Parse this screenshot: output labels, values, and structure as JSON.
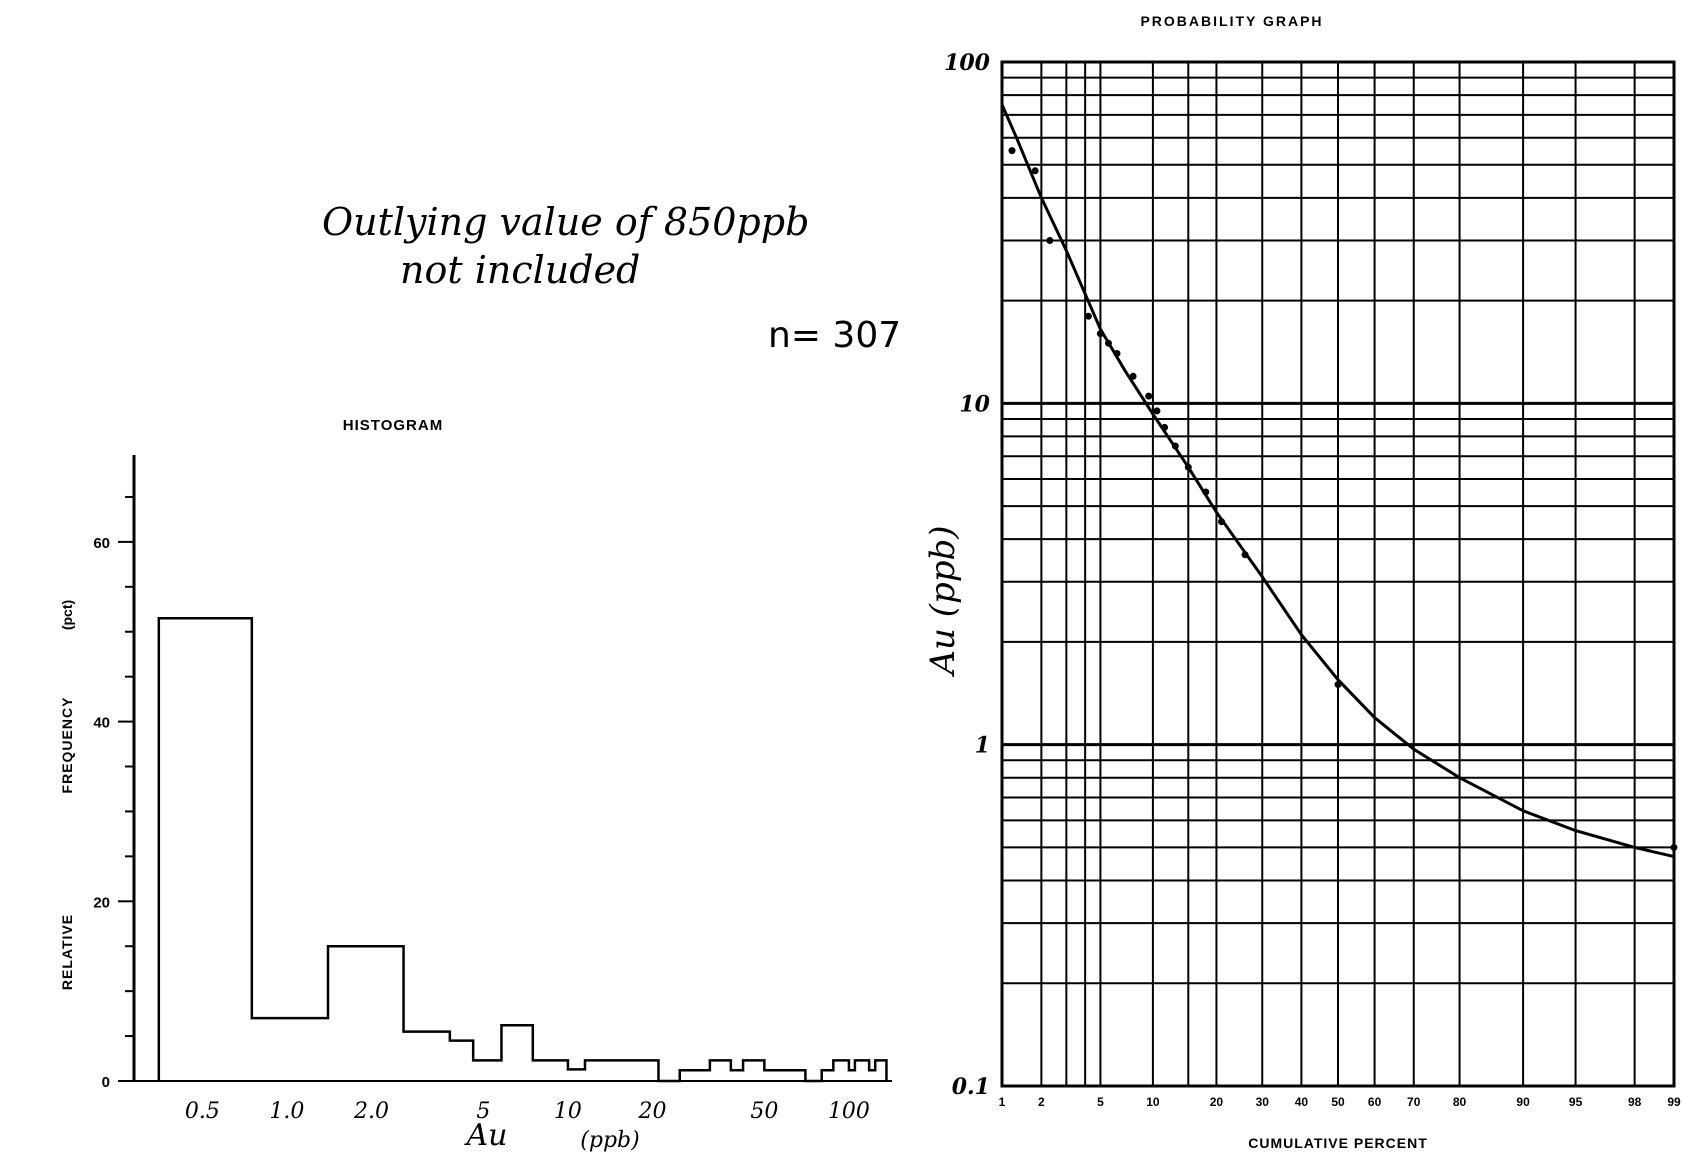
{
  "annotations": {
    "note_line1": "Outlying value of 850ppb",
    "note_line2": "not included",
    "sample_count": "n= 307"
  },
  "chart_data": [
    {
      "type": "bar",
      "title": "HISTOGRAM",
      "ylabel_parts": [
        "RELATIVE",
        "FREQUENCY",
        "(pct)"
      ],
      "xlabel": "Au",
      "xlabel_unit": "(ppb)",
      "x_scale": "log",
      "xlim": [
        0.3,
        140
      ],
      "ylim": [
        0,
        68
      ],
      "yticks": [
        0,
        20,
        40,
        60
      ],
      "xticks": [
        {
          "value": 0.5,
          "label": "0.5"
        },
        {
          "value": 1.0,
          "label": "1.0"
        },
        {
          "value": 2.0,
          "label": "2.0"
        },
        {
          "value": 5,
          "label": "5"
        },
        {
          "value": 10,
          "label": "10"
        },
        {
          "value": 20,
          "label": "20"
        },
        {
          "value": 50,
          "label": "50"
        },
        {
          "value": 100,
          "label": "100"
        }
      ],
      "bins": [
        {
          "from": 0.35,
          "to": 0.75,
          "value": 51.5
        },
        {
          "from": 0.75,
          "to": 1.4,
          "value": 7
        },
        {
          "from": 1.4,
          "to": 2.6,
          "value": 15
        },
        {
          "from": 2.6,
          "to": 3.8,
          "value": 5.5
        },
        {
          "from": 3.8,
          "to": 4.6,
          "value": 4.5
        },
        {
          "from": 4.6,
          "to": 5.8,
          "value": 2.3
        },
        {
          "from": 5.8,
          "to": 7.5,
          "value": 6.2
        },
        {
          "from": 7.5,
          "to": 10,
          "value": 2.3
        },
        {
          "from": 10,
          "to": 11.5,
          "value": 1.3
        },
        {
          "from": 11.5,
          "to": 21,
          "value": 2.3
        },
        {
          "from": 21,
          "to": 25,
          "value": 0
        },
        {
          "from": 25,
          "to": 32,
          "value": 1.2
        },
        {
          "from": 32,
          "to": 38,
          "value": 2.3
        },
        {
          "from": 38,
          "to": 42,
          "value": 1.2
        },
        {
          "from": 42,
          "to": 50,
          "value": 2.3
        },
        {
          "from": 50,
          "to": 70,
          "value": 1.2
        },
        {
          "from": 70,
          "to": 80,
          "value": 0
        },
        {
          "from": 80,
          "to": 88,
          "value": 1.2
        },
        {
          "from": 88,
          "to": 100,
          "value": 2.3
        },
        {
          "from": 100,
          "to": 105,
          "value": 1.2
        },
        {
          "from": 105,
          "to": 118,
          "value": 2.3
        },
        {
          "from": 118,
          "to": 124,
          "value": 1.2
        },
        {
          "from": 124,
          "to": 136,
          "value": 2.3
        }
      ]
    },
    {
      "type": "line",
      "title": "PROBABILITY GRAPH",
      "xlabel": "CUMULATIVE PERCENT",
      "ylabel": "Au (ppb)",
      "x_scale": "normal-probability",
      "y_scale": "log",
      "xlim": [
        1,
        99
      ],
      "ylim": [
        0.1,
        100
      ],
      "grid": true,
      "xticks": [
        1,
        2,
        5,
        10,
        20,
        30,
        40,
        50,
        60,
        70,
        80,
        90,
        95,
        98,
        99
      ],
      "yticks": [
        {
          "value": 0.1,
          "label": "0.1"
        },
        {
          "value": 1,
          "label": "1"
        },
        {
          "value": 10,
          "label": "10"
        },
        {
          "value": 100,
          "label": "100"
        }
      ],
      "points": [
        {
          "x": 1.2,
          "y": 55
        },
        {
          "x": 1.8,
          "y": 48
        },
        {
          "x": 2.3,
          "y": 30
        },
        {
          "x": 4.2,
          "y": 18
        },
        {
          "x": 5,
          "y": 16
        },
        {
          "x": 5.6,
          "y": 15
        },
        {
          "x": 6.3,
          "y": 14
        },
        {
          "x": 7.8,
          "y": 12
        },
        {
          "x": 9.5,
          "y": 10.5
        },
        {
          "x": 10.5,
          "y": 9.5
        },
        {
          "x": 11.5,
          "y": 8.5
        },
        {
          "x": 13,
          "y": 7.5
        },
        {
          "x": 15,
          "y": 6.5
        },
        {
          "x": 18,
          "y": 5.5
        },
        {
          "x": 21,
          "y": 4.5
        },
        {
          "x": 26,
          "y": 3.6
        },
        {
          "x": 50,
          "y": 1.5
        },
        {
          "x": 99,
          "y": 0.5
        }
      ],
      "curve": [
        {
          "x": 1,
          "y": 75
        },
        {
          "x": 1.3,
          "y": 60
        },
        {
          "x": 2,
          "y": 40
        },
        {
          "x": 3,
          "y": 28
        },
        {
          "x": 5,
          "y": 16.5
        },
        {
          "x": 7,
          "y": 12.5
        },
        {
          "x": 10,
          "y": 9.3
        },
        {
          "x": 15,
          "y": 6.5
        },
        {
          "x": 20,
          "y": 4.8
        },
        {
          "x": 30,
          "y": 3.1
        },
        {
          "x": 40,
          "y": 2.1
        },
        {
          "x": 50,
          "y": 1.55
        },
        {
          "x": 60,
          "y": 1.2
        },
        {
          "x": 70,
          "y": 0.97
        },
        {
          "x": 80,
          "y": 0.8
        },
        {
          "x": 90,
          "y": 0.64
        },
        {
          "x": 95,
          "y": 0.56
        },
        {
          "x": 98,
          "y": 0.5
        },
        {
          "x": 99,
          "y": 0.47
        }
      ]
    }
  ]
}
